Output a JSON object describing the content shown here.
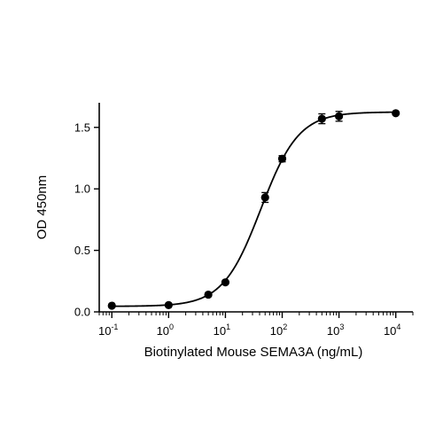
{
  "chart_data": {
    "type": "scatter",
    "title": "",
    "xlabel": "Biotinylated Mouse SEMA3A (ng/mL)",
    "ylabel": "OD 450nm",
    "xscale": "log",
    "xlim": [
      0.06,
      20000
    ],
    "ylim": [
      0,
      1.7
    ],
    "grid": false,
    "legend": "none",
    "x_ticks": [
      {
        "value": 0.1,
        "base": "10",
        "exp": "-1"
      },
      {
        "value": 1,
        "base": "10",
        "exp": "0"
      },
      {
        "value": 10,
        "base": "10",
        "exp": "1"
      },
      {
        "value": 100,
        "base": "10",
        "exp": "2"
      },
      {
        "value": 1000,
        "base": "10",
        "exp": "3"
      },
      {
        "value": 10000,
        "base": "10",
        "exp": "4"
      }
    ],
    "y_ticks": [
      {
        "value": 0.0,
        "label": "0.0"
      },
      {
        "value": 0.5,
        "label": "0.5"
      },
      {
        "value": 1.0,
        "label": "1.0"
      },
      {
        "value": 1.5,
        "label": "1.5"
      }
    ],
    "series": [
      {
        "x": [
          0.1,
          1,
          5,
          10,
          50,
          100,
          500,
          1000,
          10000
        ],
        "y": [
          0.05,
          0.055,
          0.14,
          0.24,
          0.93,
          1.245,
          1.57,
          1.59,
          1.615
        ],
        "err": [
          0.005,
          0.005,
          0.008,
          0.01,
          0.04,
          0.025,
          0.04,
          0.04,
          0.01
        ]
      }
    ],
    "fit": {
      "type": "4PL",
      "bottom": 0.045,
      "top": 1.625,
      "ec50": 42,
      "hill": 1.3
    },
    "marker_color": "#000000",
    "line_color": "#000000"
  }
}
